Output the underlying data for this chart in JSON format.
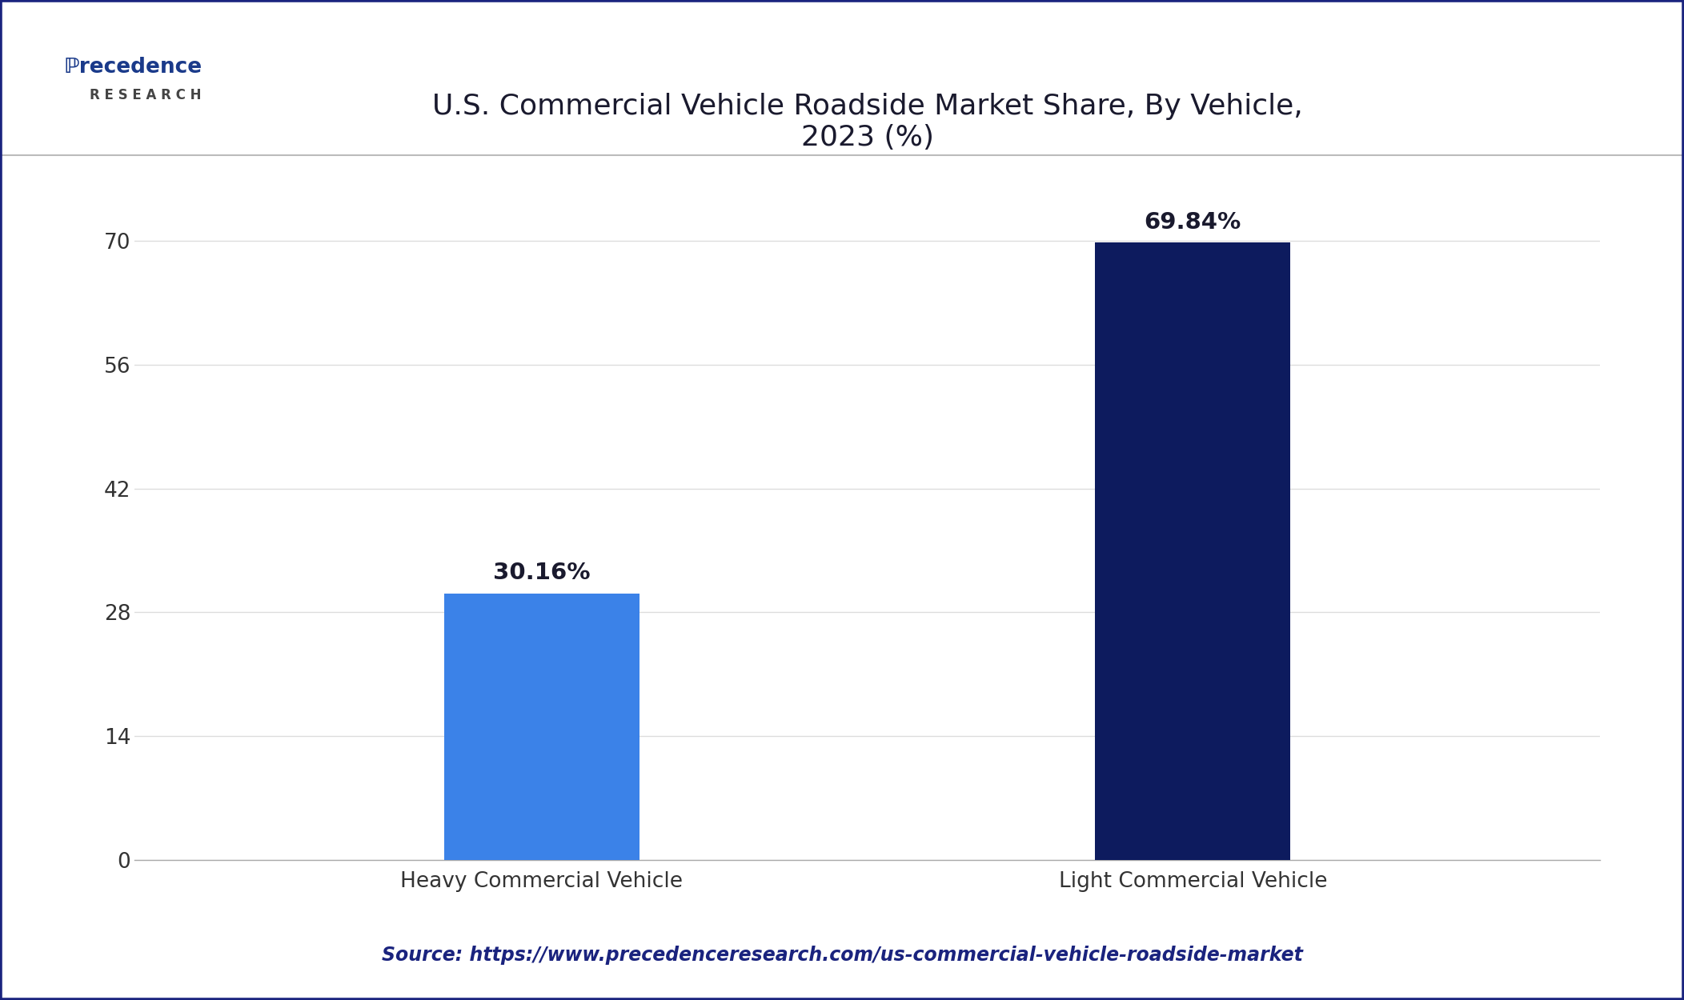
{
  "title": "U.S. Commercial Vehicle Roadside Market Share, By Vehicle,\n2023 (%)",
  "categories": [
    "Heavy Commercial Vehicle",
    "Light Commercial Vehicle"
  ],
  "values": [
    30.16,
    69.84
  ],
  "labels": [
    "30.16%",
    "69.84%"
  ],
  "bar_colors": [
    "#3b82e8",
    "#0d1b5e"
  ],
  "background_color": "#ffffff",
  "plot_bg_color": "#ffffff",
  "yticks": [
    0,
    14,
    28,
    42,
    56,
    70
  ],
  "ylim": [
    0,
    78
  ],
  "title_fontsize": 26,
  "tick_fontsize": 19,
  "label_fontsize": 21,
  "source_text": "Source: https://www.precedenceresearch.com/us-commercial-vehicle-roadside-market",
  "source_color": "#1a237e",
  "source_fontsize": 17,
  "grid_color": "#dddddd",
  "border_color": "#1a237e",
  "title_color": "#1a1a2e",
  "bar_width": 0.12,
  "x_positions": [
    0.3,
    0.7
  ]
}
